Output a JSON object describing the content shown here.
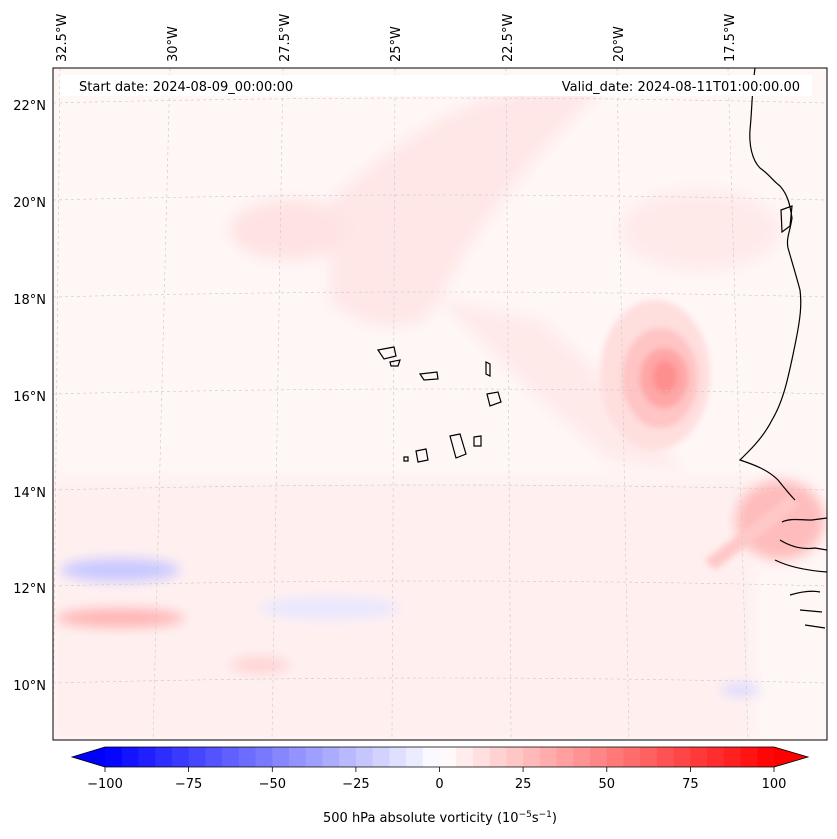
{
  "figure": {
    "start_date_text": "Start date: 2024-08-09_00:00:00",
    "valid_date_text": "Valid_date: 2024-08-11T01:00:00.00"
  },
  "map": {
    "projection": "lambert-conformal-like",
    "lon_range": [
      -33.0,
      -15.0
    ],
    "lat_range": [
      9.0,
      22.8
    ],
    "gridlines": true,
    "lon_ticks": [
      {
        "value": -32.5,
        "label": "32.5°W"
      },
      {
        "value": -30.0,
        "label": "30°W"
      },
      {
        "value": -27.5,
        "label": "27.5°W"
      },
      {
        "value": -25.0,
        "label": "25°W"
      },
      {
        "value": -22.5,
        "label": "22.5°W"
      },
      {
        "value": -20.0,
        "label": "20°W"
      },
      {
        "value": -17.5,
        "label": "17.5°W"
      }
    ],
    "lat_ticks": [
      {
        "value": 22,
        "label": "22°N"
      },
      {
        "value": 20,
        "label": "20°N"
      },
      {
        "value": 18,
        "label": "18°N"
      },
      {
        "value": 16,
        "label": "16°N"
      },
      {
        "value": 14,
        "label": "14°N"
      },
      {
        "value": 12,
        "label": "12°N"
      },
      {
        "value": 10,
        "label": "10°N"
      }
    ],
    "features": [
      {
        "name": "vorticity-maximum",
        "lon": -19.2,
        "lat": 16.3,
        "value": 45
      },
      {
        "name": "cabo-verde-islands",
        "lon": -24.0,
        "lat": 15.8
      },
      {
        "name": "west-african-coast",
        "lon": -16.8,
        "lat": 16.0
      }
    ]
  },
  "colorbar": {
    "label_prefix": "500 hPa absolute vorticity (10",
    "label_exp1": "−5",
    "label_mid": "s",
    "label_exp2": "−1",
    "label_suffix": ")",
    "min": -100,
    "max": 100,
    "extend": "both",
    "cmap": "bwr",
    "ticks": [
      {
        "value": -100,
        "label": "−100"
      },
      {
        "value": -75,
        "label": "−75"
      },
      {
        "value": -50,
        "label": "−50"
      },
      {
        "value": -25,
        "label": "−25"
      },
      {
        "value": 0,
        "label": "0"
      },
      {
        "value": 25,
        "label": "25"
      },
      {
        "value": 50,
        "label": "50"
      },
      {
        "value": 75,
        "label": "75"
      },
      {
        "value": 100,
        "label": "100"
      }
    ],
    "levels": 41,
    "colors": {
      "low": "#0000ff",
      "mid": "#ffffff",
      "high": "#ff0000"
    }
  }
}
